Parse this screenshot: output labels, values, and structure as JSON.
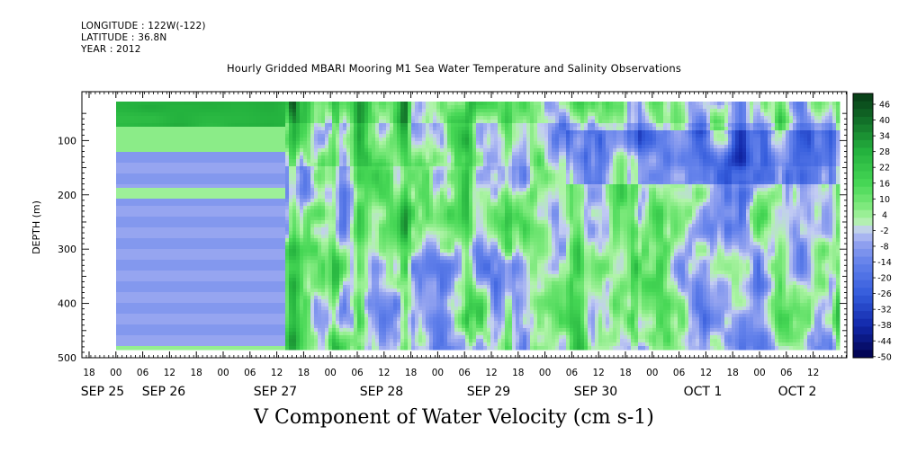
{
  "header": {
    "longitude": "LONGITUDE : 122W(-122)",
    "latitude": "LATITUDE : 36.8N",
    "year": "YEAR : 2012",
    "title": "Hourly Gridded MBARI Mooring M1 Sea Water Temperature and Salinity Observations"
  },
  "chart_data": {
    "type": "heatmap",
    "title": "Hourly Gridded MBARI Mooring M1 Sea Water Temperature and Salinity Observations",
    "xlabel": "V Component of Water Velocity (cm s-1)",
    "ylabel": "DEPTH (m)",
    "y_axis": {
      "ticks": [
        100,
        200,
        300,
        400,
        500
      ],
      "range": [
        10,
        500
      ],
      "reversed": true
    },
    "x_axis": {
      "hour_ticks": [
        "18",
        "00",
        "06",
        "12",
        "18",
        "00",
        "06",
        "12",
        "18",
        "00",
        "06",
        "12",
        "18",
        "00",
        "06",
        "12",
        "18",
        "00",
        "06",
        "12",
        "18",
        "00",
        "06",
        "12",
        "18",
        "00",
        "06",
        "12"
      ],
      "day_labels": [
        "SEP 25",
        "SEP 26",
        "SEP 27",
        "SEP 28",
        "SEP 29",
        "SEP 30",
        "OCT  1",
        "OCT  2"
      ]
    },
    "colorbar": {
      "labels": [
        "46",
        "40",
        "34",
        "28",
        "22",
        "16",
        "10",
        "4",
        "-2",
        "-8",
        "-14",
        "-20",
        "-26",
        "-32",
        "-38",
        "-44",
        "-50"
      ],
      "range": [
        -50,
        50
      ]
    },
    "colors": {
      "strong_positive": "#0b3a16",
      "positive": "#4fdc5a",
      "weak_positive": "#a8f0a0",
      "weak_negative": "#c4cdf3",
      "negative": "#6f8ce6",
      "strong_negative": "#00004a"
    }
  }
}
